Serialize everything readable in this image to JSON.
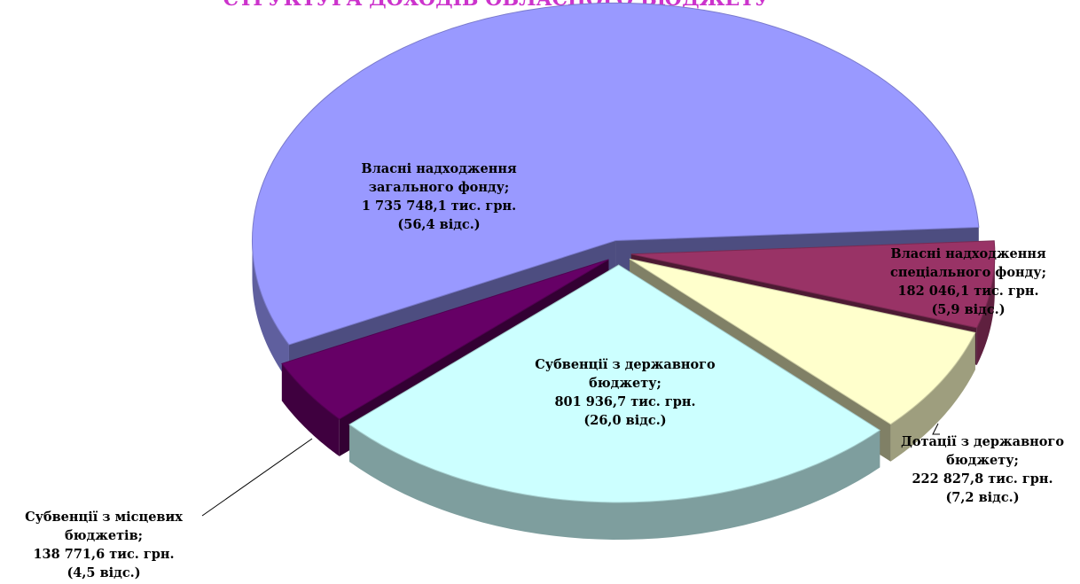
{
  "chart_data": {
    "type": "pie3d",
    "title": "СТРУКТУРА ДОХОДІВ ОБЛАСНОГО БЮДЖЕТУ",
    "categories": [
      "Власні надходження загального фонду;",
      "Власні надходження спеціального фонду;",
      "Дотації з державного бюджету;",
      "Субвенції з державного бюджету;",
      "Субвенції з місцевих бюджетів;"
    ],
    "values": [
      1735748.1,
      182046.1,
      222827.8,
      801936.7,
      138771.6
    ],
    "value_labels": [
      "1 735 748,1 тис. грн.",
      "182 046,1 тис. грн.",
      "222 827,8 тис. грн.",
      "801 936,7 тис. грн.",
      "138 771,6 тис. грн."
    ],
    "shares": [
      56.4,
      5.9,
      7.2,
      26.0,
      4.5
    ],
    "share_labels": [
      "(56,4 відс.)",
      "(5,9 відс.)",
      "(7,2 відс.)",
      "(26,0 відс.)",
      "(4,5 відс.)"
    ],
    "colors": [
      "#9999ff",
      "#993366",
      "#ffffcc",
      "#ccffff",
      "#660066"
    ]
  }
}
